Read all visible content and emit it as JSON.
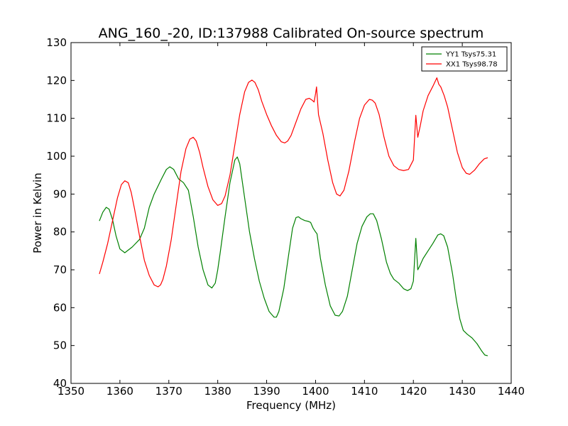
{
  "chart_data": {
    "type": "line",
    "title": "ANG_160_-20, ID:137988 Calibrated On-source spectrum",
    "xlabel": "Frequency (MHz)",
    "ylabel": "Power in Kelvin",
    "xlim": [
      1350,
      1440
    ],
    "ylim": [
      40,
      130
    ],
    "xticks": [
      1350,
      1360,
      1370,
      1380,
      1390,
      1400,
      1410,
      1420,
      1430,
      1440
    ],
    "yticks": [
      40,
      50,
      60,
      70,
      80,
      90,
      100,
      110,
      120,
      130
    ],
    "grid": false,
    "legend_position": "top-right",
    "series": [
      {
        "name": "YY1 Tsys75.31",
        "color": "#008000",
        "x": [
          1355.8,
          1356.5,
          1357.2,
          1357.8,
          1358.5,
          1359.2,
          1360.0,
          1361.0,
          1362.5,
          1364.0,
          1365.0,
          1366.0,
          1367.0,
          1368.5,
          1369.5,
          1370.2,
          1371.0,
          1372.0,
          1373.0,
          1374.0,
          1375.0,
          1376.0,
          1377.0,
          1378.0,
          1378.8,
          1379.5,
          1380.0,
          1380.5,
          1381.5,
          1382.5,
          1383.5,
          1384.0,
          1384.5,
          1385.5,
          1386.5,
          1387.5,
          1388.5,
          1389.5,
          1390.5,
          1391.5,
          1392.0,
          1392.5,
          1393.5,
          1394.5,
          1395.3,
          1396.0,
          1396.5,
          1397.0,
          1397.8,
          1398.5,
          1399.0,
          1399.5,
          1400.0,
          1400.3,
          1401.0,
          1402.0,
          1403.0,
          1404.0,
          1404.8,
          1405.5,
          1406.5,
          1407.5,
          1408.5,
          1409.5,
          1410.5,
          1411.2,
          1411.8,
          1412.5,
          1413.5,
          1414.5,
          1415.3,
          1416.0,
          1417.0,
          1418.0,
          1418.8,
          1419.5,
          1420.0,
          1420.5,
          1420.9,
          1421.3,
          1422.0,
          1423.0,
          1424.0,
          1425.0,
          1425.6,
          1426.2,
          1427.0,
          1428.0,
          1428.8,
          1429.5,
          1430.2,
          1431.0,
          1432.0,
          1433.0,
          1434.0,
          1434.6,
          1435.2
        ],
        "values": [
          82.9,
          85.2,
          86.5,
          86.0,
          83.2,
          79.0,
          75.5,
          74.5,
          76.0,
          78.0,
          81.0,
          86.5,
          90.0,
          94.0,
          96.5,
          97.2,
          96.5,
          94.0,
          93.0,
          91.0,
          84.0,
          76.0,
          70.0,
          66.0,
          65.2,
          66.5,
          70.0,
          74.5,
          84.0,
          93.0,
          99.0,
          99.8,
          98.0,
          89.0,
          80.0,
          73.0,
          67.0,
          62.5,
          59.0,
          57.5,
          57.5,
          59.0,
          65.0,
          74.0,
          81.0,
          83.8,
          84.0,
          83.5,
          83.0,
          82.8,
          82.5,
          81.0,
          80.0,
          79.5,
          73.0,
          66.0,
          60.5,
          58.0,
          57.8,
          59.0,
          63.0,
          70.0,
          77.0,
          81.5,
          84.0,
          84.8,
          84.8,
          83.0,
          78.0,
          72.0,
          69.0,
          67.5,
          66.5,
          65.0,
          64.5,
          65.0,
          67.0,
          78.3,
          70.0,
          71.0,
          73.0,
          75.0,
          77.0,
          79.2,
          79.5,
          79.0,
          76.0,
          69.0,
          62.0,
          57.0,
          54.0,
          53.0,
          52.0,
          50.5,
          48.5,
          47.5,
          47.3
        ]
      },
      {
        "name": "XX1 Tsys98.78",
        "color": "#ff0000",
        "x": [
          1355.8,
          1356.5,
          1357.5,
          1358.5,
          1359.5,
          1360.3,
          1361.0,
          1361.7,
          1362.3,
          1363.0,
          1364.0,
          1365.0,
          1366.0,
          1367.0,
          1367.8,
          1368.3,
          1368.8,
          1369.5,
          1370.5,
          1371.5,
          1372.5,
          1373.5,
          1374.3,
          1375.0,
          1375.6,
          1376.3,
          1377.0,
          1378.0,
          1379.0,
          1380.0,
          1380.8,
          1381.5,
          1382.5,
          1383.5,
          1384.5,
          1385.5,
          1386.3,
          1387.0,
          1387.6,
          1388.3,
          1389.0,
          1390.0,
          1391.0,
          1392.0,
          1393.0,
          1393.7,
          1394.3,
          1395.0,
          1396.0,
          1397.0,
          1398.0,
          1398.7,
          1399.3,
          1399.7,
          1400.0,
          1400.2,
          1400.6,
          1401.5,
          1402.5,
          1403.5,
          1404.3,
          1405.0,
          1405.8,
          1406.8,
          1408.0,
          1409.0,
          1410.0,
          1411.0,
          1411.6,
          1412.2,
          1413.0,
          1414.0,
          1415.0,
          1416.0,
          1417.0,
          1418.0,
          1419.0,
          1420.0,
          1420.5,
          1420.9,
          1421.4,
          1422.0,
          1423.0,
          1424.0,
          1424.8,
          1425.2,
          1425.6,
          1426.3,
          1427.0,
          1428.0,
          1429.0,
          1430.0,
          1430.8,
          1431.5,
          1432.5,
          1433.5,
          1434.5,
          1435.2
        ],
        "values": [
          68.9,
          72.0,
          77.0,
          83.0,
          89.0,
          92.5,
          93.5,
          93.0,
          90.5,
          86.0,
          79.0,
          72.5,
          68.5,
          66.0,
          65.5,
          66.0,
          67.5,
          71.0,
          78.0,
          87.0,
          96.0,
          102.0,
          104.5,
          105.0,
          104.0,
          101.0,
          97.0,
          92.0,
          88.5,
          87.0,
          87.5,
          89.5,
          95.0,
          103.0,
          111.0,
          117.0,
          119.5,
          120.1,
          119.5,
          117.5,
          114.5,
          111.0,
          108.0,
          105.5,
          103.8,
          103.5,
          104.0,
          105.5,
          109.0,
          112.5,
          115.0,
          115.3,
          114.8,
          114.3,
          116.5,
          118.3,
          111.0,
          106.0,
          99.0,
          93.0,
          90.0,
          89.5,
          91.0,
          96.0,
          104.0,
          110.0,
          113.5,
          115.0,
          114.8,
          114.0,
          111.0,
          105.0,
          100.0,
          97.5,
          96.5,
          96.2,
          96.5,
          99.0,
          110.8,
          105.0,
          108.0,
          112.0,
          116.0,
          118.5,
          120.7,
          119.0,
          118.3,
          116.0,
          113.0,
          107.0,
          101.0,
          97.0,
          95.5,
          95.2,
          96.3,
          98.0,
          99.3,
          99.6
        ]
      }
    ]
  }
}
